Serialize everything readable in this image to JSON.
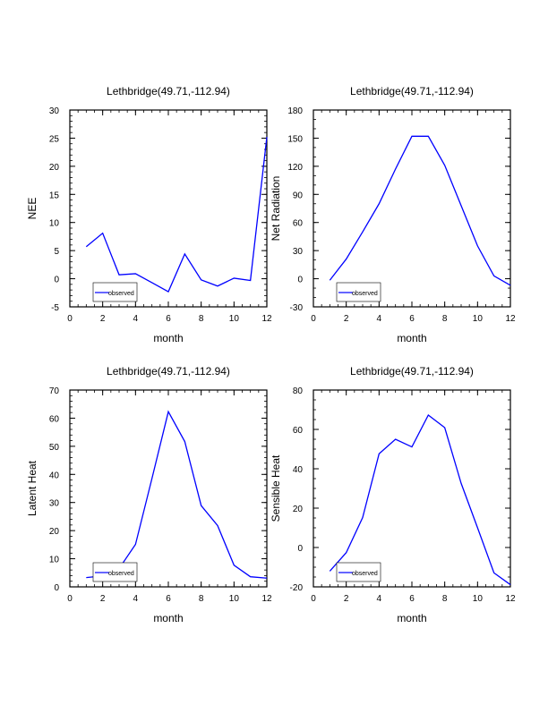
{
  "chart_data": [
    {
      "type": "line",
      "title": "Lethbridge(49.71,-112.94)",
      "xlabel": "month",
      "ylabel": "NEE",
      "xlim": [
        0,
        12
      ],
      "xticks": [
        0,
        2,
        4,
        6,
        8,
        10,
        12
      ],
      "xminor": 0.5,
      "ylim": [
        -5,
        30
      ],
      "yticks": [
        -5,
        0,
        5,
        10,
        15,
        20,
        25,
        30
      ],
      "yminor": 1,
      "legend": "bottom-left",
      "series": [
        {
          "name": "observed",
          "color": "#0000ff",
          "x": [
            1,
            2,
            3,
            4,
            5,
            6,
            7,
            8,
            9,
            10,
            11,
            12
          ],
          "values": [
            5.7,
            8.1,
            0.7,
            0.9,
            -0.7,
            -2.3,
            4.4,
            -0.2,
            -1.3,
            0.1,
            -0.3,
            25.2
          ]
        }
      ]
    },
    {
      "type": "line",
      "title": "Lethbridge(49.71,-112.94)",
      "xlabel": "month",
      "ylabel": "Net Radiation",
      "xlim": [
        0,
        12
      ],
      "xticks": [
        0,
        2,
        4,
        6,
        8,
        10,
        12
      ],
      "xminor": 0.5,
      "ylim": [
        -30,
        180
      ],
      "yticks": [
        -30,
        0,
        30,
        60,
        90,
        120,
        150,
        180
      ],
      "yminor": 10,
      "legend": "bottom-left",
      "series": [
        {
          "name": "observed",
          "color": "#0000ff",
          "x": [
            1,
            2,
            3,
            4,
            5,
            6,
            7,
            8,
            9,
            10,
            11,
            12
          ],
          "values": [
            -1.6,
            21,
            50,
            80,
            117,
            152,
            152,
            121,
            78,
            35,
            3,
            -7
          ]
        }
      ]
    },
    {
      "type": "line",
      "title": "Lethbridge(49.71,-112.94)",
      "xlabel": "month",
      "ylabel": "Latent Heat",
      "xlim": [
        0,
        12
      ],
      "xticks": [
        0,
        2,
        4,
        6,
        8,
        10,
        12
      ],
      "xminor": 0.5,
      "ylim": [
        0,
        70
      ],
      "yticks": [
        0,
        10,
        20,
        30,
        40,
        50,
        60,
        70
      ],
      "yminor": 2,
      "legend": "bottom-left",
      "series": [
        {
          "name": "observed",
          "color": "#0000ff",
          "x": [
            1,
            2,
            3,
            4,
            5,
            6,
            7,
            8,
            9,
            10,
            11,
            12
          ],
          "values": [
            3.3,
            3.9,
            6.5,
            15.1,
            38.5,
            62.3,
            51.7,
            28.9,
            21.8,
            7.7,
            3.6,
            3.1
          ]
        }
      ]
    },
    {
      "type": "line",
      "title": "Lethbridge(49.71,-112.94)",
      "xlabel": "month",
      "ylabel": "Sensible Heat",
      "xlim": [
        0,
        12
      ],
      "xticks": [
        0,
        2,
        4,
        6,
        8,
        10,
        12
      ],
      "xminor": 0.5,
      "ylim": [
        -20,
        80
      ],
      "yticks": [
        -20,
        0,
        20,
        40,
        60,
        80
      ],
      "yminor": 5,
      "legend": "bottom-left",
      "series": [
        {
          "name": "observed",
          "color": "#0000ff",
          "x": [
            1,
            2,
            3,
            4,
            5,
            6,
            7,
            8,
            9,
            10,
            11,
            12
          ],
          "values": [
            -12,
            -2.6,
            15.2,
            47.6,
            55,
            51.1,
            67.3,
            60.9,
            32.6,
            10,
            -12.9,
            -18.9
          ]
        }
      ]
    }
  ]
}
